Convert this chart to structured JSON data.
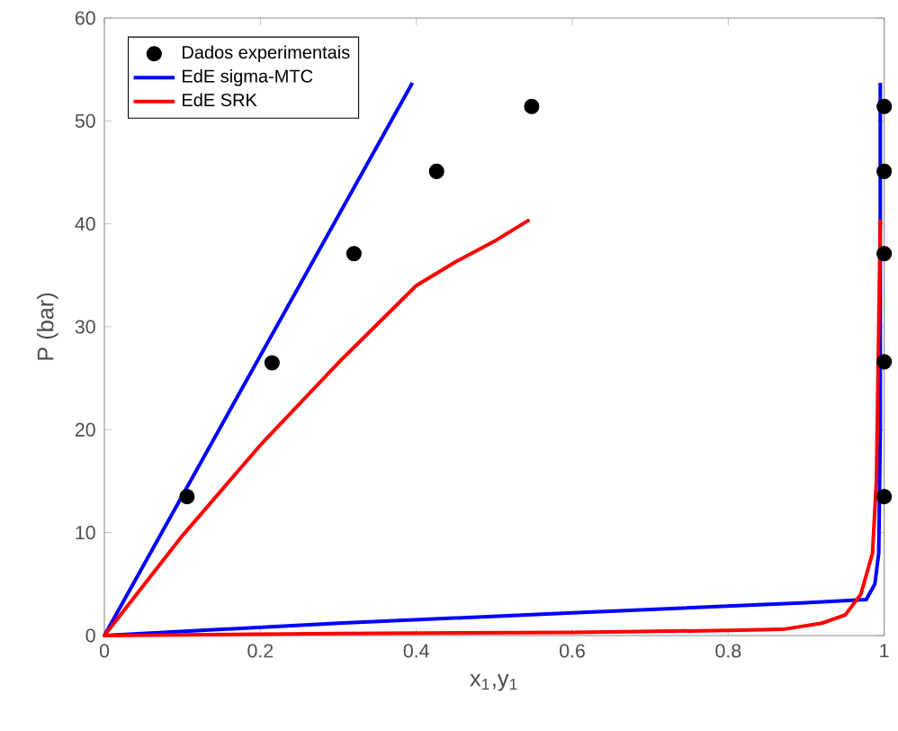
{
  "chart_data": {
    "type": "line",
    "xlabel": "x$_{1}$,y$_{1}$",
    "ylabel": "P (bar)",
    "xlim": [
      0,
      1
    ],
    "ylim": [
      0,
      60
    ],
    "xticks": [
      0,
      0.2,
      0.4,
      0.6,
      0.8,
      1
    ],
    "yticks": [
      0,
      10,
      20,
      30,
      40,
      50,
      60
    ],
    "legend": "top left",
    "grid": false,
    "series": [
      {
        "name": "Dados experimentais",
        "type": "scatter",
        "marker": "circle",
        "color": "#000000",
        "x": [
          0.106,
          0.215,
          0.32,
          0.426,
          0.548,
          1,
          1,
          1,
          1,
          1
        ],
        "values": [
          13.5,
          26.5,
          37.1,
          45.1,
          51.4,
          13.5,
          26.6,
          37.1,
          45.1,
          51.4
        ]
      },
      {
        "name": "EdE sigma-MTC",
        "color": "#0000ff",
        "x": [
          0.395,
          0.2,
          0.1,
          0,
          0.3,
          0.6,
          0.9,
          0.977,
          0.988,
          0.993,
          0.995,
          0.995
        ],
        "values": [
          53.7,
          27.2,
          13.6,
          0,
          1.2,
          2.2,
          3.2,
          3.5,
          5,
          8,
          20,
          53.7
        ]
      },
      {
        "name": "EdE SRK",
        "color": "#ff0000",
        "x": [
          0.545,
          0.5,
          0.45,
          0.4,
          0.3,
          0.2,
          0.1,
          0,
          0.3,
          0.6,
          0.8,
          0.87,
          0.92,
          0.95,
          0.97,
          0.985,
          0.99,
          0.993,
          0.995
        ],
        "values": [
          40.4,
          38.3,
          36.3,
          34,
          26.5,
          18.5,
          9.7,
          0,
          0.2,
          0.3,
          0.5,
          0.6,
          1.2,
          2,
          4,
          8,
          15,
          30,
          40.4
        ]
      }
    ]
  }
}
